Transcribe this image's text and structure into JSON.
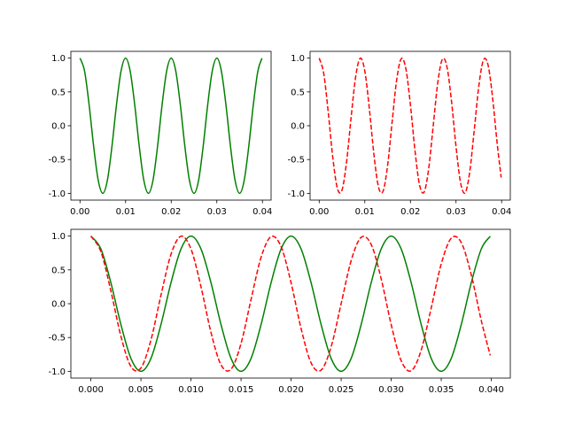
{
  "chart_data": [
    {
      "type": "line",
      "x": [
        0,
        0.001,
        0.002,
        0.003,
        0.004,
        0.005,
        0.006,
        0.007,
        0.008,
        0.009,
        0.01,
        0.011,
        0.012,
        0.013,
        0.014,
        0.015,
        0.016,
        0.017,
        0.018,
        0.019,
        0.02,
        0.021,
        0.022,
        0.023,
        0.024,
        0.025,
        0.026,
        0.027,
        0.028,
        0.029,
        0.03,
        0.031,
        0.032,
        0.033,
        0.034,
        0.035,
        0.036,
        0.037,
        0.038,
        0.039,
        0.0399
      ],
      "series": [
        {
          "color": "#008000",
          "linestyle": "solid",
          "values": [
            1,
            0.809,
            0.309,
            -0.309,
            -0.809,
            -1,
            -0.809,
            -0.309,
            0.309,
            0.809,
            1,
            0.809,
            0.309,
            -0.309,
            -0.809,
            -1,
            -0.809,
            -0.309,
            0.309,
            0.809,
            1,
            0.809,
            0.309,
            -0.309,
            -0.809,
            -1,
            -0.809,
            -0.309,
            0.309,
            0.809,
            1,
            0.809,
            0.309,
            -0.309,
            -0.809,
            -1,
            -0.809,
            -0.309,
            0.309,
            0.809,
            0.998
          ]
        }
      ],
      "xlim": [
        -0.002,
        0.0419
      ],
      "ylim": [
        -1.1,
        1.1
      ],
      "xticks": [
        {
          "value": 0,
          "label": "0.00"
        },
        0.01,
        0.02,
        0.03,
        0.04
      ],
      "yticks": [
        {
          "value": -1,
          "label": "-1.0"
        },
        -0.5,
        {
          "value": 0,
          "label": "0.0"
        },
        0.5,
        {
          "value": 1,
          "label": "1.0"
        }
      ]
    },
    {
      "type": "line",
      "x": [
        0,
        0.001,
        0.002,
        0.003,
        0.004,
        0.005,
        0.006,
        0.007,
        0.008,
        0.009,
        0.01,
        0.011,
        0.012,
        0.013,
        0.014,
        0.015,
        0.016,
        0.017,
        0.018,
        0.019,
        0.02,
        0.021,
        0.022,
        0.023,
        0.024,
        0.025,
        0.026,
        0.027,
        0.028,
        0.029,
        0.03,
        0.031,
        0.032,
        0.033,
        0.034,
        0.035,
        0.036,
        0.037,
        0.038,
        0.039,
        0.0399
      ],
      "series": [
        {
          "color": "#ff0000",
          "linestyle": "dashed",
          "values": [
            1,
            0.77,
            0.187,
            -0.482,
            -0.93,
            -0.951,
            -0.536,
            0.125,
            0.729,
            0.998,
            0.809,
            0.249,
            -0.426,
            -0.905,
            -0.969,
            -0.588,
            0.063,
            0.685,
            0.992,
            0.844,
            0.309,
            -0.368,
            -0.876,
            -0.982,
            -0.637,
            0,
            0.637,
            0.982,
            0.876,
            0.368,
            -0.309,
            -0.844,
            -0.992,
            -0.685,
            -0.063,
            0.588,
            0.969,
            0.905,
            0.426,
            -0.249,
            -0.766
          ]
        }
      ],
      "xlim": [
        -0.002,
        0.0419
      ],
      "ylim": [
        -1.1,
        1.1
      ],
      "xticks": [
        {
          "value": 0,
          "label": "0.00"
        },
        0.01,
        0.02,
        0.03,
        0.04
      ],
      "yticks": [
        {
          "value": -1,
          "label": "-1.0"
        },
        -0.5,
        {
          "value": 0,
          "label": "0.0"
        },
        0.5,
        {
          "value": 1,
          "label": "1.0"
        }
      ]
    },
    {
      "type": "line",
      "x": [
        0,
        0.001,
        0.002,
        0.003,
        0.004,
        0.005,
        0.006,
        0.007,
        0.008,
        0.009,
        0.01,
        0.011,
        0.012,
        0.013,
        0.014,
        0.015,
        0.016,
        0.017,
        0.018,
        0.019,
        0.02,
        0.021,
        0.022,
        0.023,
        0.024,
        0.025,
        0.026,
        0.027,
        0.028,
        0.029,
        0.03,
        0.031,
        0.032,
        0.033,
        0.034,
        0.035,
        0.036,
        0.037,
        0.038,
        0.039,
        0.0399
      ],
      "series": [
        {
          "color": "#008000",
          "linestyle": "solid",
          "values": [
            1,
            0.809,
            0.309,
            -0.309,
            -0.809,
            -1,
            -0.809,
            -0.309,
            0.309,
            0.809,
            1,
            0.809,
            0.309,
            -0.309,
            -0.809,
            -1,
            -0.809,
            -0.309,
            0.309,
            0.809,
            1,
            0.809,
            0.309,
            -0.309,
            -0.809,
            -1,
            -0.809,
            -0.309,
            0.309,
            0.809,
            1,
            0.809,
            0.309,
            -0.309,
            -0.809,
            -1,
            -0.809,
            -0.309,
            0.309,
            0.809,
            0.998
          ]
        },
        {
          "color": "#ff0000",
          "linestyle": "dashed",
          "values": [
            1,
            0.77,
            0.187,
            -0.482,
            -0.93,
            -0.951,
            -0.536,
            0.125,
            0.729,
            0.998,
            0.809,
            0.249,
            -0.426,
            -0.905,
            -0.969,
            -0.588,
            0.063,
            0.685,
            0.992,
            0.844,
            0.309,
            -0.368,
            -0.876,
            -0.982,
            -0.637,
            0,
            0.637,
            0.982,
            0.876,
            0.368,
            -0.309,
            -0.844,
            -0.992,
            -0.685,
            -0.063,
            0.588,
            0.969,
            0.905,
            0.426,
            -0.249,
            -0.766
          ]
        }
      ],
      "xlim": [
        -0.002,
        0.0419
      ],
      "ylim": [
        -1.1,
        1.1
      ],
      "xticks": [
        {
          "value": 0,
          "label": "0.000"
        },
        0.005,
        {
          "value": 0.01,
          "label": "0.010"
        },
        0.015,
        {
          "value": 0.02,
          "label": "0.020"
        },
        0.025,
        {
          "value": 0.03,
          "label": "0.030"
        },
        0.035,
        {
          "value": 0.04,
          "label": "0.040"
        }
      ],
      "yticks": [
        {
          "value": -1,
          "label": "-1.0"
        },
        -0.5,
        {
          "value": 0,
          "label": "0.0"
        },
        0.5,
        {
          "value": 1,
          "label": "1.0"
        }
      ]
    }
  ]
}
